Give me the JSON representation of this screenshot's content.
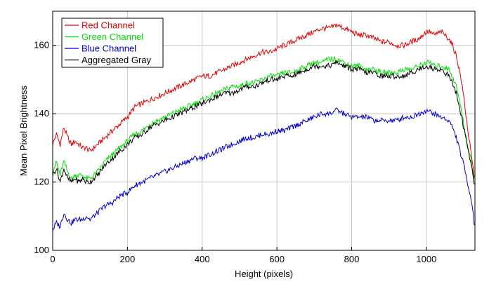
{
  "chart_data": {
    "type": "line",
    "xlabel": "Height (pixels)",
    "ylabel": "Mean Pixel Brightness",
    "xlim": [
      0,
      1130
    ],
    "ylim": [
      100,
      170
    ],
    "xticks": [
      0,
      200,
      400,
      600,
      800,
      1000
    ],
    "yticks": [
      100,
      120,
      140,
      160
    ],
    "grid": true,
    "legend_position": "top-left",
    "x": [
      0,
      10,
      20,
      30,
      40,
      50,
      60,
      70,
      80,
      90,
      100,
      120,
      140,
      160,
      180,
      200,
      220,
      240,
      260,
      280,
      300,
      320,
      340,
      360,
      380,
      400,
      420,
      440,
      460,
      480,
      500,
      520,
      540,
      560,
      580,
      600,
      620,
      640,
      660,
      680,
      700,
      720,
      740,
      760,
      770,
      780,
      800,
      820,
      840,
      860,
      880,
      900,
      920,
      940,
      960,
      980,
      1000,
      1010,
      1020,
      1040,
      1060,
      1070,
      1080,
      1090,
      1100,
      1110,
      1120,
      1125,
      1128
    ],
    "series": [
      {
        "name": "Red Channel",
        "color": "#e00000",
        "values": [
          131,
          134,
          131,
          136,
          133,
          131,
          132,
          131,
          130,
          130,
          129,
          131,
          133,
          135,
          137,
          139,
          142,
          143,
          144,
          145,
          146,
          147,
          148,
          149,
          150,
          151,
          151,
          152,
          153,
          154,
          155,
          156,
          157,
          158,
          158,
          159,
          160,
          161,
          162,
          163,
          164,
          165,
          165,
          166,
          165.5,
          165,
          164,
          163,
          163,
          162,
          161,
          161,
          160,
          160,
          161,
          162,
          164,
          164,
          163,
          164,
          162,
          160,
          157,
          152,
          145,
          136,
          128,
          124,
          122
        ]
      },
      {
        "name": "Green Channel",
        "color": "#00dd00",
        "values": [
          123,
          126,
          122,
          126,
          123,
          121,
          122,
          122,
          122,
          121,
          121,
          123,
          126,
          128,
          130,
          132,
          134,
          135,
          137,
          138,
          139,
          140,
          141,
          142,
          143,
          144,
          145,
          146,
          147,
          148,
          148,
          149,
          149,
          150,
          151,
          151,
          152,
          152,
          153,
          154,
          155,
          155,
          156,
          156,
          155.5,
          155,
          154,
          154,
          153,
          153,
          152,
          152,
          152,
          153,
          153,
          154,
          155,
          155,
          154,
          154,
          153,
          151,
          148,
          143,
          137,
          131,
          126,
          123,
          121
        ]
      },
      {
        "name": "Blue Channel",
        "color": "#0000cc",
        "values": [
          106,
          108,
          107,
          111,
          109,
          108,
          109,
          109,
          109,
          110,
          109,
          111,
          113,
          114,
          116,
          117,
          119,
          120,
          121,
          122,
          123,
          124,
          125,
          126,
          127,
          127,
          128,
          129,
          130,
          131,
          132,
          133,
          133,
          134,
          134,
          135,
          135,
          136,
          137,
          138,
          139,
          140,
          140,
          141,
          140.5,
          140,
          139,
          139,
          139,
          138,
          138,
          138,
          138,
          139,
          139,
          140,
          141,
          140.5,
          140,
          139,
          138,
          136,
          133,
          129,
          125,
          120,
          115,
          111,
          108
        ]
      },
      {
        "name": "Aggregated Gray",
        "color": "#000000",
        "values": [
          122,
          124,
          120,
          124,
          121,
          120,
          121,
          120,
          121,
          120,
          120,
          122,
          125,
          127,
          129,
          131,
          133,
          134,
          136,
          137,
          138,
          139,
          140,
          141,
          142,
          143,
          144,
          145,
          146,
          146,
          147,
          148,
          148,
          149,
          150,
          150,
          151,
          151,
          152,
          153,
          154,
          154,
          154,
          155,
          154.5,
          154,
          153,
          153,
          152,
          152,
          151,
          151,
          151,
          151,
          152,
          153,
          154,
          153.5,
          153,
          153,
          151,
          149,
          146,
          141,
          136,
          130,
          125,
          122,
          120
        ]
      }
    ]
  }
}
